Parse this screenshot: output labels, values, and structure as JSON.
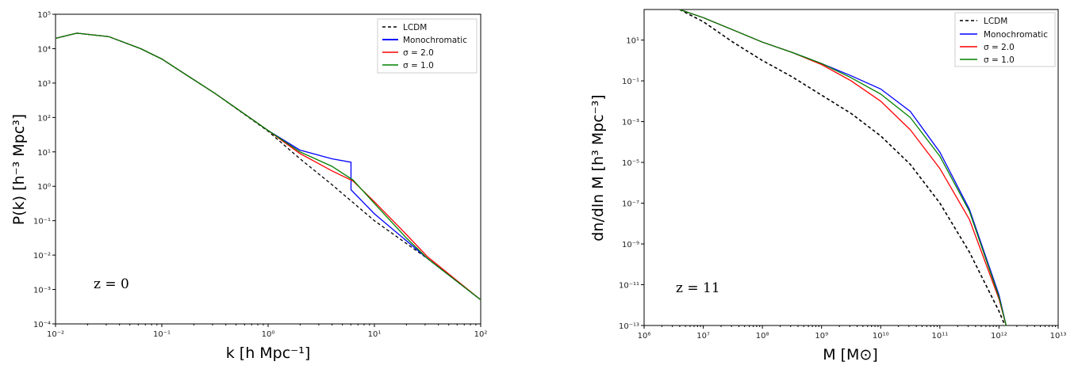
{
  "chart_data": [
    {
      "type": "line",
      "title": "",
      "xlabel": "k [h Mpc⁻¹]",
      "ylabel": "P(k) [h⁻³ Mpc³]",
      "xscale": "log",
      "yscale": "log",
      "xlim_log10": [
        -2,
        2
      ],
      "ylim_log10": [
        -4,
        5
      ],
      "x_tick_labels": [
        "10⁻²",
        "10⁻¹",
        "10⁰",
        "10¹",
        "10²"
      ],
      "y_tick_labels": [
        "10⁻⁴",
        "10⁻³",
        "10⁻²",
        "10⁻¹",
        "10⁰",
        "10¹",
        "10²",
        "10³",
        "10⁴",
        "10⁵"
      ],
      "annotation": "z = 0",
      "legend_position": "top-right",
      "series": [
        {
          "name": "LCDM",
          "color": "#000000",
          "dashed": true,
          "log_x": [
            -2,
            -1.8,
            -1.5,
            -1.2,
            -1,
            -0.8,
            -0.5,
            0,
            0.3,
            0.6,
            1,
            1.5,
            2
          ],
          "log_y": [
            4.3,
            4.45,
            4.35,
            4.0,
            3.7,
            3.3,
            2.7,
            1.6,
            0.8,
            0.05,
            -1.0,
            -2.1,
            -3.3
          ]
        },
        {
          "name": "Monochromatic",
          "color": "#0000ff",
          "dashed": false,
          "log_x": [
            -2,
            -1.8,
            -1.5,
            -1.2,
            -1,
            -0.8,
            -0.5,
            0,
            0.3,
            0.6,
            0.78,
            0.78,
            1,
            1.5,
            2
          ],
          "log_y": [
            4.3,
            4.45,
            4.35,
            4.0,
            3.7,
            3.3,
            2.7,
            1.62,
            1.05,
            0.8,
            0.7,
            -0.1,
            -0.8,
            -2.1,
            -3.3
          ]
        },
        {
          "name": "σ = 2.0",
          "color": "#ff0000",
          "dashed": false,
          "log_x": [
            -2,
            -1.8,
            -1.5,
            -1.2,
            -1,
            -0.8,
            -0.5,
            0,
            0.3,
            0.6,
            0.8,
            1,
            1.3,
            1.5,
            2
          ],
          "log_y": [
            4.3,
            4.45,
            4.35,
            4.0,
            3.7,
            3.3,
            2.7,
            1.62,
            0.95,
            0.45,
            0.15,
            -0.45,
            -1.4,
            -2.05,
            -3.3
          ]
        },
        {
          "name": "σ = 1.0",
          "color": "#008000",
          "dashed": false,
          "log_x": [
            -2,
            -1.8,
            -1.5,
            -1.2,
            -1,
            -0.8,
            -0.5,
            0,
            0.3,
            0.6,
            0.8,
            1,
            1.3,
            1.5,
            2
          ],
          "log_y": [
            4.3,
            4.45,
            4.35,
            4.0,
            3.7,
            3.3,
            2.7,
            1.62,
            1.0,
            0.58,
            0.18,
            -0.5,
            -1.5,
            -2.1,
            -3.3
          ]
        }
      ]
    },
    {
      "type": "line",
      "title": "",
      "xlabel": "M [M⊙]",
      "ylabel": "dn/dln M [h³ Mpc⁻³]",
      "xscale": "log",
      "yscale": "log",
      "xlim_log10": [
        6,
        13
      ],
      "ylim_log10": [
        -13,
        2.5
      ],
      "x_tick_labels": [
        "10⁶",
        "10⁷",
        "10⁸",
        "10⁹",
        "10¹⁰",
        "10¹¹",
        "10¹²",
        "10¹³"
      ],
      "y_tick_labels": [
        "10⁻¹³",
        "10⁻¹¹",
        "10⁻⁹",
        "10⁻⁷",
        "10⁻⁵",
        "10⁻³",
        "10⁻¹",
        "10¹"
      ],
      "y_tick_values_log10": [
        -13,
        -11,
        -9,
        -7,
        -5,
        -3,
        -1,
        1
      ],
      "annotation": "z = 11",
      "legend_position": "top-right",
      "series": [
        {
          "name": "LCDM",
          "color": "#000000",
          "dashed": true,
          "log_x": [
            6.6,
            7,
            7.5,
            8,
            8.5,
            9,
            9.5,
            10,
            10.5,
            11,
            11.5,
            12,
            12.1
          ],
          "log_y": [
            2.5,
            1.9,
            0.9,
            0.0,
            -0.8,
            -1.7,
            -2.6,
            -3.7,
            -5.1,
            -7.0,
            -9.4,
            -12.3,
            -13.0
          ]
        },
        {
          "name": "Monochromatic",
          "color": "#0000ff",
          "dashed": false,
          "log_x": [
            6.6,
            7,
            7.5,
            8,
            8.5,
            9,
            9.5,
            10,
            10.5,
            11,
            11.5,
            12,
            12.12
          ],
          "log_y": [
            2.5,
            2.1,
            1.5,
            0.9,
            0.4,
            -0.15,
            -0.75,
            -1.4,
            -2.5,
            -4.5,
            -7.3,
            -11.5,
            -13.0
          ]
        },
        {
          "name": "σ = 2.0",
          "color": "#ff0000",
          "dashed": false,
          "log_x": [
            6.6,
            7,
            7.5,
            8,
            8.5,
            9,
            9.5,
            10,
            10.5,
            11,
            11.5,
            12,
            12.12
          ],
          "log_y": [
            2.5,
            2.1,
            1.5,
            0.9,
            0.4,
            -0.2,
            -1.0,
            -2.0,
            -3.4,
            -5.3,
            -7.8,
            -11.7,
            -13.0
          ]
        },
        {
          "name": "σ = 1.0",
          "color": "#008000",
          "dashed": false,
          "log_x": [
            6.6,
            7,
            7.5,
            8,
            8.5,
            9,
            9.5,
            10,
            10.5,
            11,
            11.5,
            12,
            12.12
          ],
          "log_y": [
            2.5,
            2.1,
            1.5,
            0.9,
            0.4,
            -0.15,
            -0.85,
            -1.65,
            -2.8,
            -4.7,
            -7.4,
            -11.6,
            -13.0
          ]
        }
      ]
    }
  ]
}
